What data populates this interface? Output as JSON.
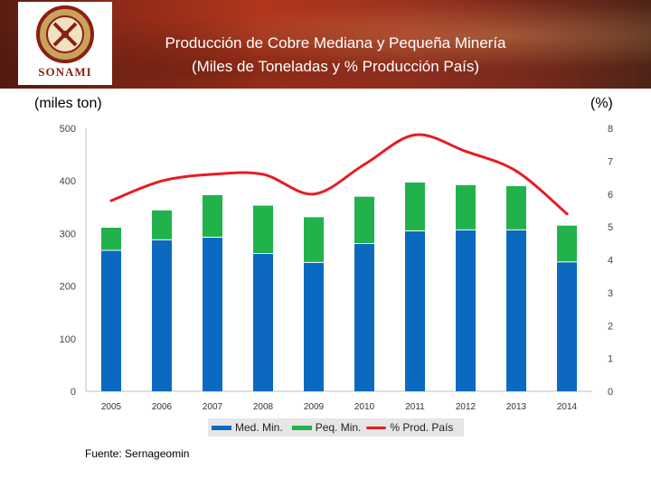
{
  "header": {
    "logo_text": "SONAMI",
    "title_line1": "Producción de Cobre Mediana y Pequeña Minería",
    "title_line2": "(Miles de Toneladas y % Producción País)"
  },
  "axis_units": {
    "left": "(miles ton)",
    "right": "(%)"
  },
  "source_note": "Fuente: Sernageomin",
  "colors": {
    "med": "#0b6ac0",
    "peq": "#22b24c",
    "line": "#e31e24",
    "banner": "#9d3320"
  },
  "chart_data": {
    "type": "bar",
    "stacked": true,
    "title": "Producción de Cobre Mediana y Pequeña Minería",
    "subtitle": "(Miles de Toneladas y % Producción País)",
    "categories": [
      "2005",
      "2006",
      "2007",
      "2008",
      "2009",
      "2010",
      "2011",
      "2012",
      "2013",
      "2014"
    ],
    "series": [
      {
        "name": "Med. Min.",
        "type": "bar",
        "axis": "left",
        "values": [
          268,
          288,
          293,
          262,
          245,
          281,
          305,
          307,
          307,
          246
        ]
      },
      {
        "name": "Peq. Min.",
        "type": "bar",
        "axis": "left",
        "values": [
          43,
          56,
          80,
          91,
          86,
          89,
          92,
          85,
          83,
          69
        ]
      },
      {
        "name": "% Prod. País",
        "type": "line",
        "axis": "right",
        "values": [
          5.8,
          6.4,
          6.6,
          6.6,
          6.0,
          6.9,
          7.8,
          7.3,
          6.7,
          5.4
        ]
      }
    ],
    "y_left": {
      "label": "(miles ton)",
      "min": 0,
      "max": 500,
      "ticks": [
        0,
        100,
        200,
        300,
        400,
        500
      ]
    },
    "y_right": {
      "label": "(%)",
      "min": 0,
      "max": 8,
      "ticks": [
        0,
        1,
        2,
        3,
        4,
        5,
        6,
        7,
        8
      ]
    },
    "legend": {
      "position": "bottom",
      "entries": [
        "Med. Min.",
        "Peq. Min.",
        "% Prod. País"
      ]
    },
    "grid": false
  }
}
